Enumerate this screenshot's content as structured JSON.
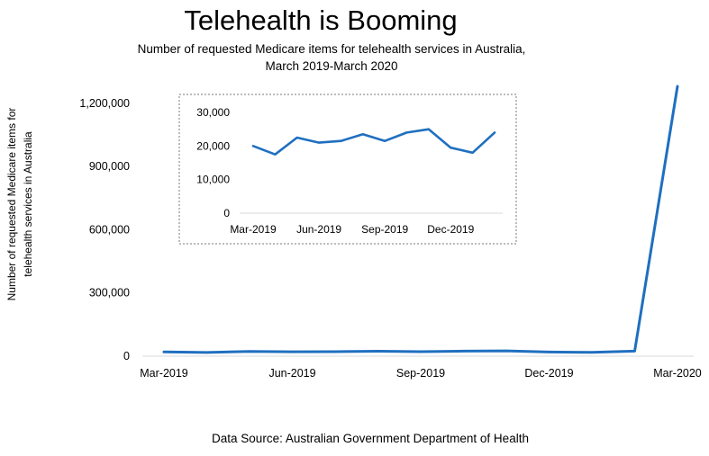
{
  "chart_data": {
    "type": "line",
    "title": "Telehealth is Booming",
    "subtitle": "Number of requested Medicare items for telehealth services in Australia, March 2019-March 2020",
    "ylabel": "Number of requested Medicare items for telehealth services in Australia",
    "source": "Data Source: Australian Government Department of Health",
    "line_color": "#1F6FBF",
    "x": [
      "2019-03",
      "2019-04",
      "2019-05",
      "2019-06",
      "2019-07",
      "2019-08",
      "2019-09",
      "2019-10",
      "2019-11",
      "2019-12",
      "2020-01",
      "2020-02",
      "2020-03"
    ],
    "values": [
      20000,
      17500,
      22500,
      21000,
      21500,
      23500,
      21500,
      24000,
      25000,
      19500,
      18000,
      24000,
      1280000
    ],
    "ylim": [
      0,
      1280000
    ],
    "y_ticks": [
      0,
      300000,
      600000,
      900000,
      1200000
    ],
    "y_tick_labels": [
      "0",
      "300,000",
      "600,000",
      "900,000",
      "1,200,000"
    ],
    "x_ticks": [
      "2019-03",
      "2019-06",
      "2019-09",
      "2019-12",
      "2020-03"
    ],
    "x_tick_labels": [
      "Mar-2019",
      "Jun-2019",
      "Sep-2019",
      "Dec-2019",
      "Mar-2020"
    ],
    "grid": false,
    "inset": {
      "type": "line",
      "x": [
        "2019-03",
        "2019-04",
        "2019-05",
        "2019-06",
        "2019-07",
        "2019-08",
        "2019-09",
        "2019-10",
        "2019-11",
        "2019-12",
        "2020-01",
        "2020-02"
      ],
      "values": [
        20000,
        17500,
        22500,
        21000,
        21500,
        23500,
        21500,
        24000,
        25000,
        19500,
        18000,
        24000
      ],
      "ylim": [
        0,
        30000
      ],
      "y_ticks": [
        0,
        10000,
        20000,
        30000
      ],
      "y_tick_labels": [
        "0",
        "10,000",
        "20,000",
        "30,000"
      ],
      "x_ticks": [
        "2019-03",
        "2019-06",
        "2019-09",
        "2019-12"
      ],
      "x_tick_labels": [
        "Mar-2019",
        "Jun-2019",
        "Sep-2019",
        "Dec-2019"
      ]
    }
  }
}
